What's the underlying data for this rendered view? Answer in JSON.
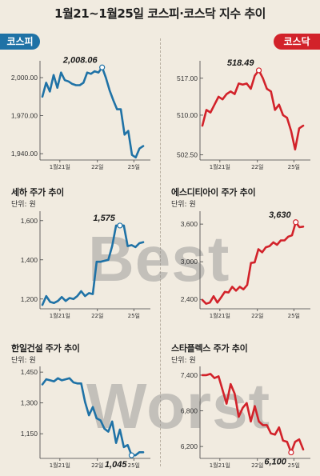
{
  "title": "1월21~1월25일 코스피·코스닥 지수 추이",
  "tags": {
    "kospi": "코스피",
    "kosdaq": "코스닥"
  },
  "watermarks": {
    "best": "Best",
    "worst": "Worst"
  },
  "colors": {
    "blue": "#1f72a6",
    "red": "#d2222a",
    "background": "#f1ebe0"
  },
  "chart_data": [
    {
      "id": "kospi",
      "type": "line",
      "title": "",
      "unit": "",
      "color": "#1f72a6",
      "yticks": [
        "2,000.00",
        "1,970.00",
        "1,940.00"
      ],
      "ytick_values": [
        2000,
        1970,
        1940
      ],
      "ylim": [
        1935,
        2012
      ],
      "xticks": [
        "1월21일",
        "22일",
        "25일"
      ],
      "values": [
        1985,
        1996,
        1989,
        2002,
        1992,
        2004,
        1998,
        1997,
        1995,
        1994,
        1994,
        1996,
        2004,
        2003,
        2005,
        2004,
        2008.06,
        2000,
        1990,
        1982,
        1975,
        1975,
        1955,
        1958,
        1939,
        1937,
        1944,
        1946
      ],
      "annotation": {
        "label": "2,008.06",
        "index": 16,
        "position": "above"
      }
    },
    {
      "id": "kosdaq",
      "type": "line",
      "title": "",
      "unit": "",
      "color": "#d2222a",
      "yticks": [
        "517.00",
        "510.00",
        "502.50"
      ],
      "ytick_values": [
        517,
        510,
        502.5
      ],
      "ylim": [
        501.5,
        520
      ],
      "xticks": [
        "1월21일",
        "22일",
        "25일"
      ],
      "values": [
        508,
        511,
        510.5,
        512,
        513.5,
        513,
        514,
        514.5,
        514,
        516,
        515.8,
        516,
        515,
        517.5,
        518.49,
        517,
        515,
        514.5,
        511,
        512,
        510,
        509.5,
        507,
        503.5,
        507.5,
        508
      ],
      "annotation": {
        "label": "518.49",
        "index": 14,
        "position": "above"
      }
    },
    {
      "id": "seha",
      "type": "line",
      "title": "세하 주가 추이",
      "unit": "단위: 원",
      "color": "#1f72a6",
      "yticks": [
        "1,600",
        "1,400",
        "1,200"
      ],
      "ytick_values": [
        1600,
        1400,
        1200
      ],
      "ylim": [
        1150,
        1640
      ],
      "xticks": [
        "1월21일",
        "22일",
        "25일"
      ],
      "values": [
        1170,
        1215,
        1185,
        1180,
        1190,
        1210,
        1190,
        1205,
        1200,
        1215,
        1240,
        1215,
        1230,
        1225,
        1390,
        1390,
        1395,
        1400,
        1470,
        1575,
        1575,
        1575,
        1470,
        1475,
        1465,
        1485,
        1490
      ],
      "annotation": {
        "label": "1,575",
        "index": 20,
        "position": "above"
      }
    },
    {
      "id": "sdi",
      "type": "line",
      "title": "에스디티아이 주가 추이",
      "unit": "단위: 원",
      "color": "#d2222a",
      "yticks": [
        "3,600",
        "3,000",
        "2,400"
      ],
      "ytick_values": [
        3600,
        3000,
        2400
      ],
      "ylim": [
        2250,
        3780
      ],
      "xticks": [
        "1월21일",
        "22일",
        "25일"
      ],
      "values": [
        2390,
        2330,
        2350,
        2450,
        2350,
        2430,
        2520,
        2510,
        2600,
        2540,
        2600,
        2560,
        2630,
        2980,
        2990,
        3200,
        3150,
        3230,
        3250,
        3310,
        3270,
        3340,
        3340,
        3400,
        3420,
        3630,
        3550,
        3560
      ],
      "annotation": {
        "label": "3,630",
        "index": 25,
        "position": "above"
      }
    },
    {
      "id": "hanil",
      "type": "line",
      "title": "한일건설 주가 추이",
      "unit": "단위: 원",
      "color": "#1f72a6",
      "yticks": [
        "1,450",
        "1,300",
        "1,150"
      ],
      "ytick_values": [
        1450,
        1300,
        1150
      ],
      "ylim": [
        1030,
        1470
      ],
      "xticks": [
        "1월21일",
        "22일",
        "25일"
      ],
      "values": [
        1390,
        1415,
        1410,
        1405,
        1420,
        1410,
        1415,
        1420,
        1400,
        1395,
        1395,
        1305,
        1240,
        1280,
        1225,
        1215,
        1175,
        1160,
        1210,
        1105,
        1170,
        1085,
        1095,
        1045,
        1045,
        1060,
        1060
      ],
      "annotation": {
        "label": "1,045",
        "index": 23,
        "position": "below"
      }
    },
    {
      "id": "staflex",
      "type": "line",
      "title": "스타플렉스 주가 추이",
      "unit": "단위: 원",
      "color": "#d2222a",
      "yticks": [
        "7,400",
        "6,800",
        "6,200"
      ],
      "ytick_values": [
        7400,
        6800,
        6200
      ],
      "ylim": [
        6000,
        7520
      ],
      "xticks": [
        "1월21일",
        "22일",
        "25일"
      ],
      "values": [
        7400,
        7400,
        7420,
        7350,
        7380,
        7150,
        6920,
        7250,
        7090,
        6700,
        6850,
        6930,
        6620,
        6880,
        6620,
        6560,
        6560,
        6420,
        6400,
        6520,
        6300,
        6280,
        6100,
        6280,
        6320,
        6150
      ],
      "annotation": {
        "label": "6,100",
        "index": 22,
        "position": "below"
      }
    }
  ]
}
